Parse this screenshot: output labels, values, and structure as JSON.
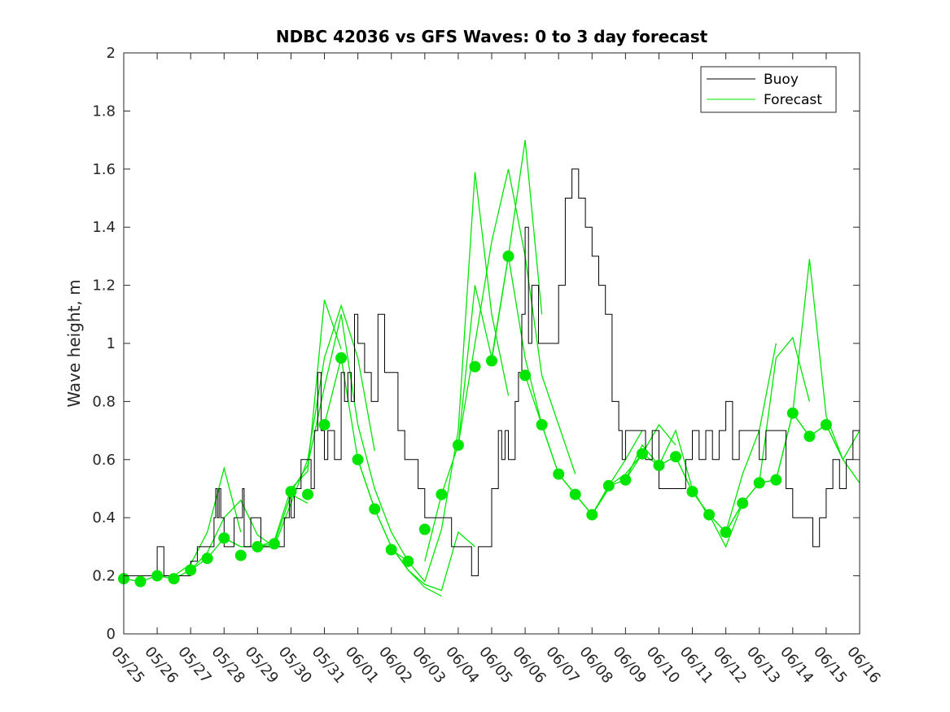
{
  "chart_data": {
    "type": "line",
    "title": "NDBC 42036 vs GFS Waves: 0 to 3 day forecast",
    "xlabel": "",
    "ylabel": "Wave height, m",
    "xlim": [
      0,
      22
    ],
    "ylim": [
      0,
      2
    ],
    "x_tick_labels": [
      "05/25",
      "05/26",
      "05/27",
      "05/28",
      "05/29",
      "05/30",
      "05/31",
      "06/01",
      "06/02",
      "06/03",
      "06/04",
      "06/05",
      "06/06",
      "06/07",
      "06/08",
      "06/09",
      "06/10",
      "06/11",
      "06/12",
      "06/13",
      "06/14",
      "06/15",
      "06/16"
    ],
    "y_ticks": [
      0,
      0.2,
      0.4,
      0.6,
      0.8,
      1,
      1.2,
      1.4,
      1.6,
      1.8,
      2
    ],
    "y_tick_labels": [
      "0",
      "0.2",
      "0.4",
      "0.6",
      "0.8",
      "1",
      "1.2",
      "1.4",
      "1.6",
      "1.8",
      "2"
    ],
    "grid": false,
    "legend_position": "top-right",
    "legend": [
      {
        "label": "Buoy",
        "color": "#000000"
      },
      {
        "label": "Forecast",
        "color": "#00e600"
      }
    ],
    "colors": {
      "buoy": "#000000",
      "forecast": "#00e600",
      "markers": "#00e600"
    },
    "series": [
      {
        "name": "Buoy",
        "x": [
          0,
          0.5,
          0.9,
          1.0,
          1.1,
          1.2,
          1.25,
          1.4,
          1.6,
          1.8,
          2.0,
          2.2,
          2.4,
          2.6,
          2.7,
          2.75,
          2.8,
          2.85,
          2.9,
          3.0,
          3.1,
          3.3,
          3.5,
          3.55,
          3.6,
          3.8,
          3.9,
          4.1,
          4.3,
          4.6,
          4.8,
          4.9,
          4.95,
          5.0,
          5.1,
          5.3,
          5.5,
          5.6,
          5.7,
          5.8,
          5.9,
          6.0,
          6.1,
          6.2,
          6.3,
          6.5,
          6.6,
          6.7,
          6.8,
          6.9,
          7.0,
          7.2,
          7.4,
          7.6,
          7.8,
          8.0,
          8.2,
          8.4,
          8.6,
          8.8,
          9.0,
          9.2,
          9.4,
          9.6,
          9.8,
          10.0,
          10.2,
          10.4,
          10.6,
          10.8,
          11.0,
          11.2,
          11.3,
          11.4,
          11.5,
          11.6,
          11.7,
          11.8,
          11.9,
          12.0,
          12.1,
          12.2,
          12.4,
          12.6,
          12.8,
          13.0,
          13.2,
          13.4,
          13.6,
          13.8,
          14.0,
          14.2,
          14.4,
          14.6,
          14.8,
          14.9,
          15.0,
          15.2,
          15.4,
          15.6,
          15.8,
          16.0,
          16.2,
          16.4,
          16.6,
          16.8,
          17.0,
          17.2,
          17.4,
          17.6,
          17.8,
          18.0,
          18.2,
          18.4,
          18.6,
          18.8,
          19.0,
          19.2,
          19.4,
          19.6,
          19.8,
          20.0,
          20.2,
          20.4,
          20.6,
          20.8,
          21.0,
          21.2,
          21.4,
          21.6,
          21.8,
          22.0
        ],
        "values": [
          0.2,
          0.2,
          0.2,
          0.3,
          0.3,
          0.2,
          0.2,
          0.2,
          0.2,
          0.2,
          0.25,
          0.3,
          0.3,
          0.3,
          0.4,
          0.5,
          0.4,
          0.5,
          0.4,
          0.3,
          0.3,
          0.4,
          0.4,
          0.5,
          0.3,
          0.4,
          0.4,
          0.3,
          0.3,
          0.3,
          0.4,
          0.4,
          0.5,
          0.4,
          0.5,
          0.6,
          0.6,
          0.5,
          0.7,
          0.9,
          0.7,
          0.6,
          0.7,
          0.7,
          0.6,
          0.9,
          0.8,
          0.9,
          0.8,
          1.1,
          1.0,
          0.9,
          0.8,
          1.1,
          0.9,
          0.9,
          0.7,
          0.6,
          0.6,
          0.5,
          0.4,
          0.4,
          0.4,
          0.4,
          0.3,
          0.3,
          0.3,
          0.2,
          0.3,
          0.3,
          0.5,
          0.7,
          0.6,
          0.7,
          0.6,
          0.6,
          0.8,
          0.9,
          1.1,
          1.4,
          1.0,
          1.2,
          1.0,
          1.0,
          1.0,
          1.2,
          1.5,
          1.6,
          1.5,
          1.4,
          1.3,
          1.2,
          1.1,
          0.8,
          0.7,
          0.6,
          0.7,
          0.7,
          0.7,
          0.6,
          0.7,
          0.5,
          0.5,
          0.5,
          0.5,
          0.6,
          0.7,
          0.6,
          0.7,
          0.6,
          0.7,
          0.8,
          0.6,
          0.7,
          0.7,
          0.7,
          0.6,
          0.7,
          0.7,
          0.7,
          0.5,
          0.4,
          0.4,
          0.4,
          0.3,
          0.4,
          0.5,
          0.6,
          0.5,
          0.6,
          0.7,
          0.7
        ]
      },
      {
        "name": "Forecast",
        "runs": [
          {
            "x": [
              0.0,
              0.5,
              1.0,
              1.5,
              2.0,
              2.5,
              3.0,
              3.5
            ],
            "values": [
              0.19,
              0.18,
              0.2,
              0.2,
              0.24,
              0.35,
              0.57,
              0.35
            ]
          },
          {
            "x": [
              1.0,
              1.5,
              2.0,
              2.5,
              3.0,
              3.5,
              4.0,
              4.5
            ],
            "values": [
              0.2,
              0.19,
              0.22,
              0.28,
              0.4,
              0.46,
              0.34,
              0.3
            ]
          },
          {
            "x": [
              2.0,
              2.5,
              3.0,
              3.5,
              4.0,
              4.5,
              5.0,
              5.5
            ],
            "values": [
              0.22,
              0.26,
              0.33,
              0.3,
              0.3,
              0.31,
              0.48,
              0.45
            ]
          },
          {
            "x": [
              3.0,
              3.5,
              4.0,
              4.5,
              5.0,
              5.5,
              6.0,
              6.5
            ],
            "values": [
              0.33,
              0.3,
              0.3,
              0.32,
              0.5,
              0.56,
              1.15,
              0.98
            ]
          },
          {
            "x": [
              4.0,
              4.5,
              5.0,
              5.5,
              6.0,
              6.5,
              7.0,
              7.5
            ],
            "values": [
              0.3,
              0.3,
              0.45,
              0.6,
              0.95,
              1.13,
              0.95,
              0.63
            ]
          },
          {
            "x": [
              5.0,
              5.5,
              6.0,
              6.5,
              7.0,
              7.5,
              8.0,
              8.5
            ],
            "values": [
              0.49,
              0.58,
              0.85,
              1.1,
              0.72,
              0.5,
              0.35,
              0.25
            ]
          },
          {
            "x": [
              6.0,
              6.5,
              7.0,
              7.5,
              8.0,
              8.5,
              9.0,
              9.5
            ],
            "values": [
              0.72,
              0.95,
              0.6,
              0.43,
              0.3,
              0.22,
              0.16,
              0.13
            ]
          },
          {
            "x": [
              7.0,
              7.5,
              8.0,
              8.5,
              9.0,
              9.5,
              10.0,
              10.5
            ],
            "values": [
              0.6,
              0.43,
              0.3,
              0.22,
              0.17,
              0.15,
              0.35,
              0.3
            ]
          },
          {
            "x": [
              8.0,
              8.5,
              9.0,
              9.5,
              10.0,
              10.5,
              11.0,
              11.5
            ],
            "values": [
              0.29,
              0.25,
              0.18,
              0.36,
              0.7,
              1.59,
              1.1,
              0.82
            ]
          },
          {
            "x": [
              9.0,
              9.5,
              10.0,
              10.5,
              11.0,
              11.5,
              12.0,
              12.5
            ],
            "values": [
              0.25,
              0.48,
              0.65,
              1.2,
              0.95,
              1.3,
              1.7,
              1.1
            ]
          },
          {
            "x": [
              10.0,
              10.5,
              11.0,
              11.5,
              12.0,
              12.5,
              13.0,
              13.5
            ],
            "values": [
              0.65,
              1.0,
              1.35,
              1.6,
              1.3,
              0.89,
              0.72,
              0.55
            ]
          },
          {
            "x": [
              11.0,
              11.5,
              12.0,
              12.5,
              13.0,
              13.5,
              14.0,
              14.5
            ],
            "values": [
              0.94,
              1.3,
              0.95,
              0.72,
              0.55,
              0.48,
              0.41,
              0.5
            ]
          },
          {
            "x": [
              12.0,
              12.5,
              13.0,
              13.5,
              14.0,
              14.5,
              15.0,
              15.5
            ],
            "values": [
              0.89,
              0.72,
              0.55,
              0.48,
              0.41,
              0.51,
              0.6,
              0.7
            ]
          },
          {
            "x": [
              13.0,
              13.5,
              14.0,
              14.5,
              15.0,
              15.5,
              16.0,
              16.5
            ],
            "values": [
              0.55,
              0.48,
              0.41,
              0.51,
              0.55,
              0.62,
              0.72,
              0.65
            ]
          },
          {
            "x": [
              14.0,
              14.5,
              15.0,
              15.5,
              16.0,
              16.5,
              17.0,
              17.5
            ],
            "values": [
              0.41,
              0.51,
              0.53,
              0.65,
              0.58,
              0.7,
              0.5,
              0.4
            ]
          },
          {
            "x": [
              15.0,
              15.5,
              16.0,
              16.5,
              17.0,
              17.5,
              18.0,
              18.5
            ],
            "values": [
              0.53,
              0.62,
              0.58,
              0.61,
              0.49,
              0.41,
              0.3,
              0.45
            ]
          },
          {
            "x": [
              16.0,
              16.5,
              17.0,
              17.5,
              18.0,
              18.5,
              19.0,
              19.5
            ],
            "values": [
              0.58,
              0.61,
              0.49,
              0.41,
              0.35,
              0.55,
              0.7,
              1.0
            ]
          },
          {
            "x": [
              17.0,
              17.5,
              18.0,
              18.5,
              19.0,
              19.5,
              20.0,
              20.5
            ],
            "values": [
              0.49,
              0.41,
              0.35,
              0.45,
              0.52,
              0.95,
              1.02,
              0.8
            ]
          },
          {
            "x": [
              18.0,
              18.5,
              19.0,
              19.5,
              20.0,
              20.5,
              21.0,
              21.5
            ],
            "values": [
              0.35,
              0.45,
              0.52,
              0.53,
              0.76,
              1.29,
              0.75,
              0.6
            ]
          },
          {
            "x": [
              19.0,
              19.5,
              20.0,
              20.5,
              21.0,
              21.5,
              22.0
            ],
            "values": [
              0.52,
              0.53,
              0.76,
              0.68,
              0.72,
              0.6,
              0.7
            ]
          },
          {
            "x": [
              20.0,
              20.5,
              21.0,
              21.5,
              22.0
            ],
            "values": [
              0.76,
              0.68,
              0.72,
              0.6,
              0.52
            ]
          }
        ],
        "analysis_points": {
          "x": [
            0.0,
            0.5,
            1.0,
            1.5,
            2.0,
            2.5,
            3.0,
            3.5,
            4.0,
            4.5,
            5.0,
            5.5,
            6.0,
            6.5,
            7.0,
            7.5,
            8.0,
            8.5,
            9.0,
            9.5,
            10.0,
            10.5,
            11.0,
            11.5,
            12.0,
            12.5,
            13.0,
            13.5,
            14.0,
            14.5,
            15.0,
            15.5,
            16.0,
            16.5,
            17.0,
            17.5,
            18.0,
            18.5,
            19.0,
            19.5,
            20.0,
            20.5,
            21.0
          ],
          "values": [
            0.19,
            0.18,
            0.2,
            0.19,
            0.22,
            0.26,
            0.33,
            0.27,
            0.3,
            0.31,
            0.49,
            0.48,
            0.72,
            0.95,
            0.6,
            0.43,
            0.29,
            0.25,
            0.36,
            0.48,
            0.65,
            0.92,
            0.94,
            1.3,
            0.89,
            0.72,
            0.55,
            0.48,
            0.41,
            0.51,
            0.53,
            0.62,
            0.58,
            0.61,
            0.49,
            0.41,
            0.35,
            0.45,
            0.52,
            0.53,
            0.76,
            0.68,
            0.72
          ]
        }
      }
    ]
  }
}
